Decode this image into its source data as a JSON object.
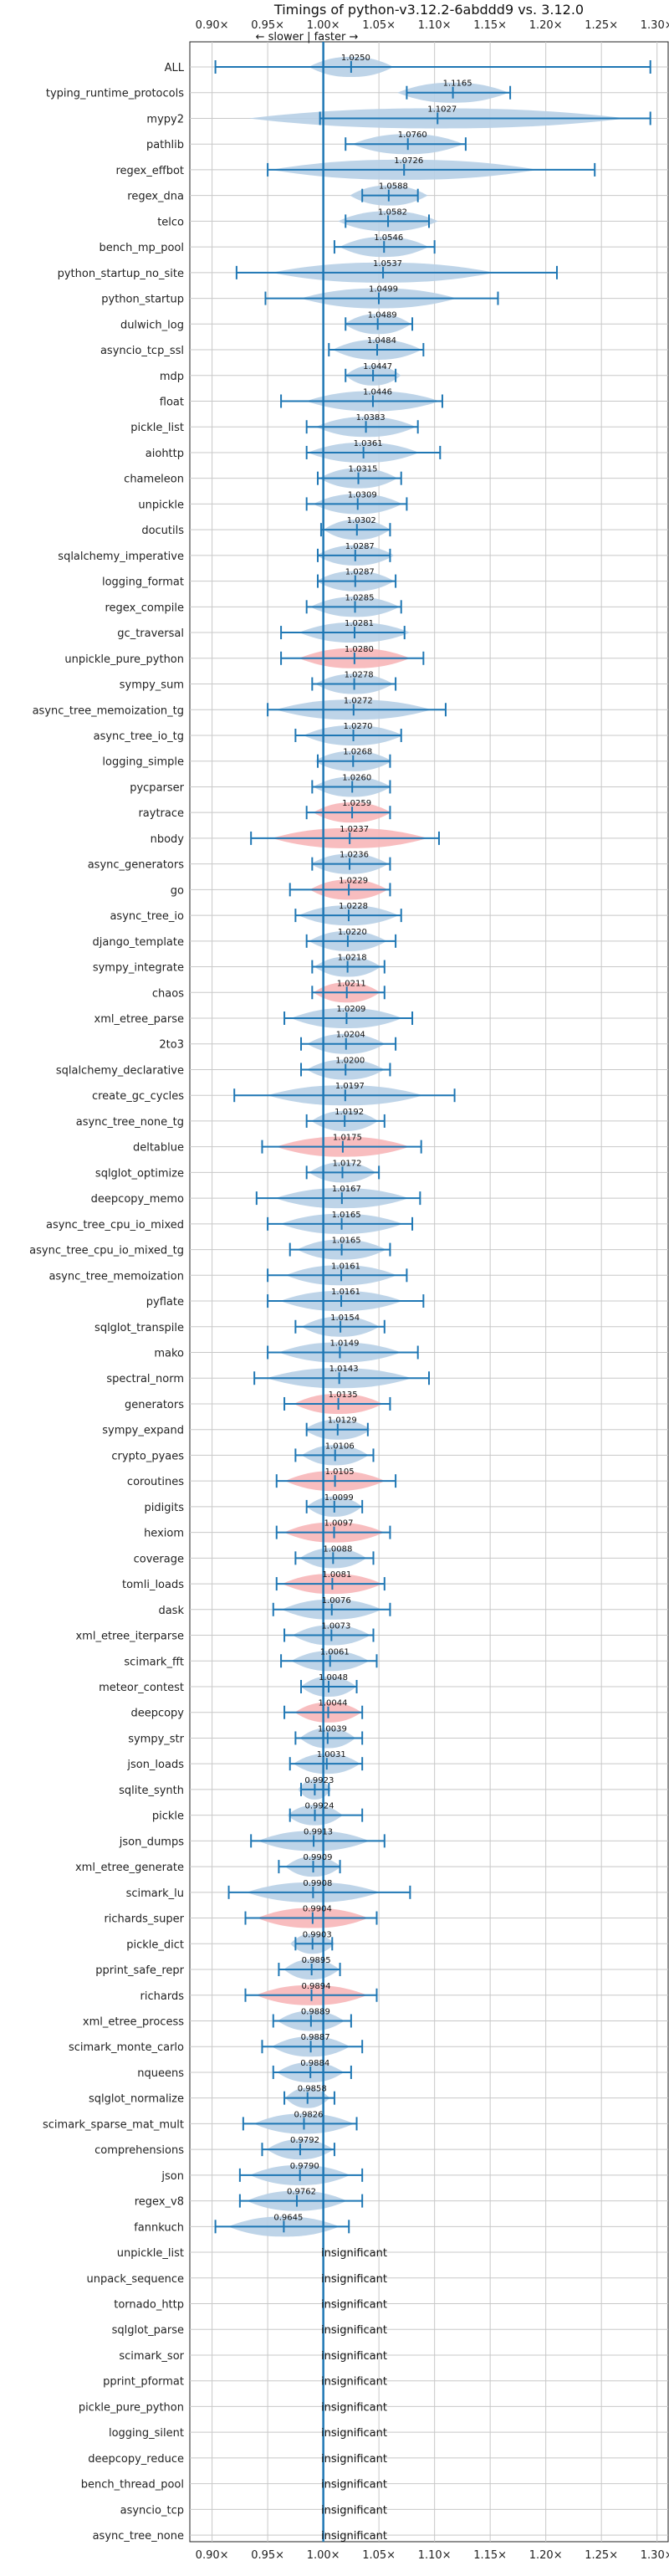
{
  "chart_data": {
    "type": "violin",
    "title": "Timings of python-v3.12.2-6abddd9 vs. 3.12.0",
    "direction_label": "← slower | faster →",
    "x_ticks": [
      "0.90×",
      "0.95×",
      "1.00×",
      "1.05×",
      "1.10×",
      "1.15×",
      "1.20×",
      "1.25×",
      "1.30×"
    ],
    "x_tick_values": [
      0.9,
      0.95,
      1.0,
      1.05,
      1.1,
      1.15,
      1.2,
      1.25,
      1.3
    ],
    "xlim": [
      0.88,
      1.31
    ],
    "grid": true,
    "insignificant_text": "insignificant",
    "colors": {
      "faster": "#b7cfe6",
      "slower": "#f7b6b8",
      "whisker": "#1f77b4",
      "median": "#1f4e8c",
      "grid": "#c8c8c8"
    },
    "benchmarks": [
      {
        "name": "ALL",
        "mean": "1.0250",
        "value": 1.025,
        "min": 0.903,
        "max": 1.294,
        "hw": 0.038,
        "color": "faster"
      },
      {
        "name": "typing_runtime_protocols",
        "mean": "1.1165",
        "value": 1.1165,
        "min": 1.075,
        "max": 1.168,
        "hw": 0.05,
        "color": "faster"
      },
      {
        "name": "mypy2",
        "mean": "1.1027",
        "value": 1.1027,
        "min": 0.997,
        "max": 1.294,
        "hw": 0.17,
        "color": "faster"
      },
      {
        "name": "pathlib",
        "mean": "1.0760",
        "value": 1.076,
        "min": 1.02,
        "max": 1.128,
        "hw": 0.05,
        "color": "faster"
      },
      {
        "name": "regex_effbot",
        "mean": "1.0726",
        "value": 1.0726,
        "min": 0.95,
        "max": 1.244,
        "hw": 0.12,
        "color": "faster"
      },
      {
        "name": "regex_dna",
        "mean": "1.0588",
        "value": 1.0588,
        "min": 1.035,
        "max": 1.085,
        "hw": 0.035,
        "color": "faster"
      },
      {
        "name": "telco",
        "mean": "1.0582",
        "value": 1.0582,
        "min": 1.02,
        "max": 1.095,
        "hw": 0.045,
        "color": "faster"
      },
      {
        "name": "bench_mp_pool",
        "mean": "1.0546",
        "value": 1.0546,
        "min": 1.01,
        "max": 1.1,
        "hw": 0.04,
        "color": "faster"
      },
      {
        "name": "python_startup_no_site",
        "mean": "1.0537",
        "value": 1.0537,
        "min": 0.922,
        "max": 1.21,
        "hw": 0.1,
        "color": "faster"
      },
      {
        "name": "python_startup",
        "mean": "1.0499",
        "value": 1.0499,
        "min": 0.948,
        "max": 1.157,
        "hw": 0.07,
        "color": "faster"
      },
      {
        "name": "dulwich_log",
        "mean": "1.0489",
        "value": 1.0489,
        "min": 1.02,
        "max": 1.08,
        "hw": 0.03,
        "color": "faster"
      },
      {
        "name": "asyncio_tcp_ssl",
        "mean": "1.0484",
        "value": 1.0484,
        "min": 1.005,
        "max": 1.09,
        "hw": 0.04,
        "color": "faster"
      },
      {
        "name": "mdp",
        "mean": "1.0447",
        "value": 1.0447,
        "min": 1.02,
        "max": 1.065,
        "hw": 0.025,
        "color": "faster"
      },
      {
        "name": "float",
        "mean": "1.0446",
        "value": 1.0446,
        "min": 0.962,
        "max": 1.107,
        "hw": 0.06,
        "color": "faster"
      },
      {
        "name": "pickle_list",
        "mean": "1.0383",
        "value": 1.0383,
        "min": 0.985,
        "max": 1.085,
        "hw": 0.045,
        "color": "faster"
      },
      {
        "name": "aiohttp",
        "mean": "1.0361",
        "value": 1.0361,
        "min": 0.985,
        "max": 1.105,
        "hw": 0.05,
        "color": "faster"
      },
      {
        "name": "chameleon",
        "mean": "1.0315",
        "value": 1.0315,
        "min": 0.995,
        "max": 1.07,
        "hw": 0.035,
        "color": "faster"
      },
      {
        "name": "unpickle",
        "mean": "1.0309",
        "value": 1.0309,
        "min": 0.985,
        "max": 1.075,
        "hw": 0.04,
        "color": "faster"
      },
      {
        "name": "docutils",
        "mean": "1.0302",
        "value": 1.0302,
        "min": 0.998,
        "max": 1.06,
        "hw": 0.03,
        "color": "faster"
      },
      {
        "name": "sqlalchemy_imperative",
        "mean": "1.0287",
        "value": 1.0287,
        "min": 0.995,
        "max": 1.06,
        "hw": 0.035,
        "color": "faster"
      },
      {
        "name": "logging_format",
        "mean": "1.0287",
        "value": 1.0287,
        "min": 0.995,
        "max": 1.065,
        "hw": 0.035,
        "color": "faster"
      },
      {
        "name": "regex_compile",
        "mean": "1.0285",
        "value": 1.0285,
        "min": 0.985,
        "max": 1.07,
        "hw": 0.04,
        "color": "faster"
      },
      {
        "name": "gc_traversal",
        "mean": "1.0281",
        "value": 1.0281,
        "min": 0.962,
        "max": 1.073,
        "hw": 0.05,
        "color": "faster"
      },
      {
        "name": "unpickle_pure_python",
        "mean": "1.0280",
        "value": 1.028,
        "min": 0.962,
        "max": 1.09,
        "hw": 0.05,
        "color": "slower"
      },
      {
        "name": "sympy_sum",
        "mean": "1.0278",
        "value": 1.0278,
        "min": 0.99,
        "max": 1.065,
        "hw": 0.035,
        "color": "faster"
      },
      {
        "name": "async_tree_memoization_tg",
        "mean": "1.0272",
        "value": 1.0272,
        "min": 0.95,
        "max": 1.11,
        "hw": 0.07,
        "color": "faster"
      },
      {
        "name": "async_tree_io_tg",
        "mean": "1.0270",
        "value": 1.027,
        "min": 0.975,
        "max": 1.07,
        "hw": 0.045,
        "color": "faster"
      },
      {
        "name": "logging_simple",
        "mean": "1.0268",
        "value": 1.0268,
        "min": 0.995,
        "max": 1.06,
        "hw": 0.035,
        "color": "faster"
      },
      {
        "name": "pycparser",
        "mean": "1.0260",
        "value": 1.026,
        "min": 0.99,
        "max": 1.06,
        "hw": 0.035,
        "color": "faster"
      },
      {
        "name": "raytrace",
        "mean": "1.0259",
        "value": 1.0259,
        "min": 0.985,
        "max": 1.06,
        "hw": 0.035,
        "color": "slower"
      },
      {
        "name": "nbody",
        "mean": "1.0237",
        "value": 1.0237,
        "min": 0.935,
        "max": 1.104,
        "hw": 0.07,
        "color": "slower"
      },
      {
        "name": "async_generators",
        "mean": "1.0236",
        "value": 1.0236,
        "min": 0.99,
        "max": 1.06,
        "hw": 0.035,
        "color": "faster"
      },
      {
        "name": "go",
        "mean": "1.0229",
        "value": 1.0229,
        "min": 0.97,
        "max": 1.06,
        "hw": 0.035,
        "color": "slower"
      },
      {
        "name": "async_tree_io",
        "mean": "1.0228",
        "value": 1.0228,
        "min": 0.975,
        "max": 1.07,
        "hw": 0.045,
        "color": "faster"
      },
      {
        "name": "django_template",
        "mean": "1.0220",
        "value": 1.022,
        "min": 0.985,
        "max": 1.065,
        "hw": 0.035,
        "color": "faster"
      },
      {
        "name": "sympy_integrate",
        "mean": "1.0218",
        "value": 1.0218,
        "min": 0.99,
        "max": 1.055,
        "hw": 0.03,
        "color": "faster"
      },
      {
        "name": "chaos",
        "mean": "1.0211",
        "value": 1.0211,
        "min": 0.99,
        "max": 1.055,
        "hw": 0.03,
        "color": "slower"
      },
      {
        "name": "xml_etree_parse",
        "mean": "1.0209",
        "value": 1.0209,
        "min": 0.965,
        "max": 1.08,
        "hw": 0.05,
        "color": "faster"
      },
      {
        "name": "2to3",
        "mean": "1.0204",
        "value": 1.0204,
        "min": 0.98,
        "max": 1.065,
        "hw": 0.035,
        "color": "faster"
      },
      {
        "name": "sqlalchemy_declarative",
        "mean": "1.0200",
        "value": 1.02,
        "min": 0.98,
        "max": 1.06,
        "hw": 0.035,
        "color": "faster"
      },
      {
        "name": "create_gc_cycles",
        "mean": "1.0197",
        "value": 1.0197,
        "min": 0.92,
        "max": 1.118,
        "hw": 0.07,
        "color": "faster"
      },
      {
        "name": "async_tree_none_tg",
        "mean": "1.0192",
        "value": 1.0192,
        "min": 0.985,
        "max": 1.055,
        "hw": 0.03,
        "color": "faster"
      },
      {
        "name": "deltablue",
        "mean": "1.0175",
        "value": 1.0175,
        "min": 0.945,
        "max": 1.088,
        "hw": 0.06,
        "color": "slower"
      },
      {
        "name": "sqlglot_optimize",
        "mean": "1.0172",
        "value": 1.0172,
        "min": 0.985,
        "max": 1.05,
        "hw": 0.03,
        "color": "faster"
      },
      {
        "name": "deepcopy_memo",
        "mean": "1.0167",
        "value": 1.0167,
        "min": 0.94,
        "max": 1.087,
        "hw": 0.06,
        "color": "faster"
      },
      {
        "name": "async_tree_cpu_io_mixed",
        "mean": "1.0165",
        "value": 1.0165,
        "min": 0.95,
        "max": 1.08,
        "hw": 0.055,
        "color": "faster"
      },
      {
        "name": "async_tree_cpu_io_mixed_tg",
        "mean": "1.0165",
        "value": 1.0165,
        "min": 0.97,
        "max": 1.06,
        "hw": 0.04,
        "color": "faster"
      },
      {
        "name": "async_tree_memoization",
        "mean": "1.0161",
        "value": 1.0161,
        "min": 0.95,
        "max": 1.075,
        "hw": 0.05,
        "color": "faster"
      },
      {
        "name": "pyflate",
        "mean": "1.0161",
        "value": 1.0161,
        "min": 0.95,
        "max": 1.09,
        "hw": 0.055,
        "color": "faster"
      },
      {
        "name": "sqlglot_transpile",
        "mean": "1.0154",
        "value": 1.0154,
        "min": 0.975,
        "max": 1.055,
        "hw": 0.035,
        "color": "faster"
      },
      {
        "name": "mako",
        "mean": "1.0149",
        "value": 1.0149,
        "min": 0.95,
        "max": 1.085,
        "hw": 0.055,
        "color": "faster"
      },
      {
        "name": "spectral_norm",
        "mean": "1.0143",
        "value": 1.0143,
        "min": 0.938,
        "max": 1.095,
        "hw": 0.065,
        "color": "faster"
      },
      {
        "name": "generators",
        "mean": "1.0135",
        "value": 1.0135,
        "min": 0.965,
        "max": 1.06,
        "hw": 0.04,
        "color": "slower"
      },
      {
        "name": "sympy_expand",
        "mean": "1.0129",
        "value": 1.0129,
        "min": 0.985,
        "max": 1.04,
        "hw": 0.03,
        "color": "faster"
      },
      {
        "name": "crypto_pyaes",
        "mean": "1.0106",
        "value": 1.0106,
        "min": 0.975,
        "max": 1.045,
        "hw": 0.03,
        "color": "faster"
      },
      {
        "name": "coroutines",
        "mean": "1.0105",
        "value": 1.0105,
        "min": 0.958,
        "max": 1.065,
        "hw": 0.045,
        "color": "slower"
      },
      {
        "name": "pidigits",
        "mean": "1.0099",
        "value": 1.0099,
        "min": 0.985,
        "max": 1.035,
        "hw": 0.025,
        "color": "faster"
      },
      {
        "name": "hexiom",
        "mean": "1.0097",
        "value": 1.0097,
        "min": 0.958,
        "max": 1.06,
        "hw": 0.045,
        "color": "slower"
      },
      {
        "name": "coverage",
        "mean": "1.0088",
        "value": 1.0088,
        "min": 0.975,
        "max": 1.045,
        "hw": 0.03,
        "color": "faster"
      },
      {
        "name": "tomli_loads",
        "mean": "1.0081",
        "value": 1.0081,
        "min": 0.958,
        "max": 1.055,
        "hw": 0.045,
        "color": "slower"
      },
      {
        "name": "dask",
        "mean": "1.0076",
        "value": 1.0076,
        "min": 0.955,
        "max": 1.06,
        "hw": 0.045,
        "color": "faster"
      },
      {
        "name": "xml_etree_iterparse",
        "mean": "1.0073",
        "value": 1.0073,
        "min": 0.965,
        "max": 1.045,
        "hw": 0.035,
        "color": "faster"
      },
      {
        "name": "scimark_fft",
        "mean": "1.0061",
        "value": 1.0061,
        "min": 0.962,
        "max": 1.048,
        "hw": 0.035,
        "color": "faster"
      },
      {
        "name": "meteor_contest",
        "mean": "1.0048",
        "value": 1.0048,
        "min": 0.98,
        "max": 1.03,
        "hw": 0.025,
        "color": "faster"
      },
      {
        "name": "deepcopy",
        "mean": "1.0044",
        "value": 1.0044,
        "min": 0.965,
        "max": 1.035,
        "hw": 0.03,
        "color": "slower"
      },
      {
        "name": "sympy_str",
        "mean": "1.0039",
        "value": 1.0039,
        "min": 0.975,
        "max": 1.035,
        "hw": 0.025,
        "color": "faster"
      },
      {
        "name": "json_loads",
        "mean": "1.0031",
        "value": 1.0031,
        "min": 0.97,
        "max": 1.035,
        "hw": 0.03,
        "color": "faster"
      },
      {
        "name": "sqlite_synth",
        "mean": "0.9923",
        "value": 0.9923,
        "min": 0.98,
        "max": 1.005,
        "hw": 0.015,
        "color": "faster"
      },
      {
        "name": "pickle",
        "mean": "0.9924",
        "value": 0.9924,
        "min": 0.97,
        "max": 1.035,
        "hw": 0.025,
        "color": "faster"
      },
      {
        "name": "json_dumps",
        "mean": "0.9913",
        "value": 0.9913,
        "min": 0.935,
        "max": 1.055,
        "hw": 0.05,
        "color": "faster"
      },
      {
        "name": "xml_etree_generate",
        "mean": "0.9909",
        "value": 0.9909,
        "min": 0.96,
        "max": 1.015,
        "hw": 0.025,
        "color": "faster"
      },
      {
        "name": "scimark_lu",
        "mean": "0.9908",
        "value": 0.9908,
        "min": 0.915,
        "max": 1.078,
        "hw": 0.06,
        "color": "faster"
      },
      {
        "name": "richards_super",
        "mean": "0.9904",
        "value": 0.9904,
        "min": 0.93,
        "max": 1.048,
        "hw": 0.05,
        "color": "slower"
      },
      {
        "name": "pickle_dict",
        "mean": "0.9903",
        "value": 0.9903,
        "min": 0.975,
        "max": 1.008,
        "hw": 0.02,
        "color": "faster"
      },
      {
        "name": "pprint_safe_repr",
        "mean": "0.9895",
        "value": 0.9895,
        "min": 0.96,
        "max": 1.015,
        "hw": 0.025,
        "color": "faster"
      },
      {
        "name": "richards",
        "mean": "0.9894",
        "value": 0.9894,
        "min": 0.93,
        "max": 1.048,
        "hw": 0.05,
        "color": "slower"
      },
      {
        "name": "xml_etree_process",
        "mean": "0.9889",
        "value": 0.9889,
        "min": 0.955,
        "max": 1.025,
        "hw": 0.03,
        "color": "faster"
      },
      {
        "name": "scimark_monte_carlo",
        "mean": "0.9887",
        "value": 0.9887,
        "min": 0.945,
        "max": 1.035,
        "hw": 0.035,
        "color": "faster"
      },
      {
        "name": "nqueens",
        "mean": "0.9884",
        "value": 0.9884,
        "min": 0.955,
        "max": 1.025,
        "hw": 0.03,
        "color": "faster"
      },
      {
        "name": "sqlglot_normalize",
        "mean": "0.9858",
        "value": 0.9858,
        "min": 0.965,
        "max": 1.01,
        "hw": 0.02,
        "color": "faster"
      },
      {
        "name": "scimark_sparse_mat_mult",
        "mean": "0.9826",
        "value": 0.9826,
        "min": 0.928,
        "max": 1.03,
        "hw": 0.045,
        "color": "faster"
      },
      {
        "name": "comprehensions",
        "mean": "0.9792",
        "value": 0.9792,
        "min": 0.945,
        "max": 1.01,
        "hw": 0.03,
        "color": "faster"
      },
      {
        "name": "json",
        "mean": "0.9790",
        "value": 0.979,
        "min": 0.925,
        "max": 1.035,
        "hw": 0.045,
        "color": "faster"
      },
      {
        "name": "regex_v8",
        "mean": "0.9762",
        "value": 0.9762,
        "min": 0.925,
        "max": 1.035,
        "hw": 0.045,
        "color": "faster"
      },
      {
        "name": "fannkuch",
        "mean": "0.9645",
        "value": 0.9645,
        "min": 0.903,
        "max": 1.023,
        "hw": 0.05,
        "color": "faster"
      },
      {
        "name": "unpickle_list",
        "insignificant": true
      },
      {
        "name": "unpack_sequence",
        "insignificant": true
      },
      {
        "name": "tornado_http",
        "insignificant": true
      },
      {
        "name": "sqlglot_parse",
        "insignificant": true
      },
      {
        "name": "scimark_sor",
        "insignificant": true
      },
      {
        "name": "pprint_pformat",
        "insignificant": true
      },
      {
        "name": "pickle_pure_python",
        "insignificant": true
      },
      {
        "name": "logging_silent",
        "insignificant": true
      },
      {
        "name": "deepcopy_reduce",
        "insignificant": true
      },
      {
        "name": "bench_thread_pool",
        "insignificant": true
      },
      {
        "name": "asyncio_tcp",
        "insignificant": true
      },
      {
        "name": "async_tree_none",
        "insignificant": true
      }
    ]
  }
}
